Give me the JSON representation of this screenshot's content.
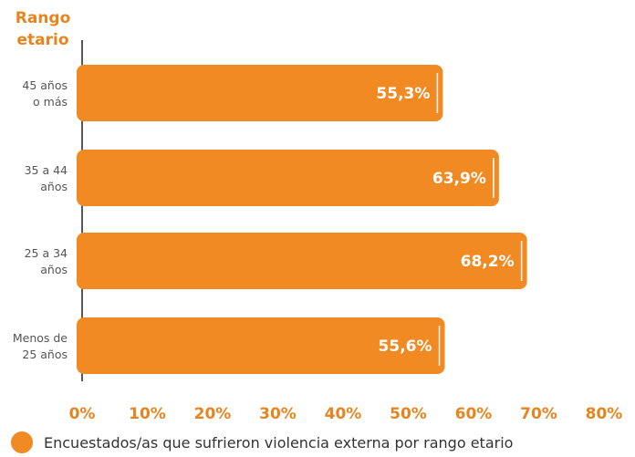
{
  "chart_data": {
    "type": "bar",
    "orientation": "horizontal",
    "ylabel": "Rango etario",
    "categories": [
      "45 años o más",
      "35 a 44 años",
      "25 a 34 años",
      "Menos de 25 años"
    ],
    "category_lines": [
      [
        "45 años",
        "o más"
      ],
      [
        "35 a 44",
        "años"
      ],
      [
        "25 a 34",
        "años"
      ],
      [
        "Menos de",
        "25 años"
      ]
    ],
    "values": [
      55.3,
      63.9,
      68.2,
      55.6
    ],
    "data_labels": [
      "55,3%",
      "63,9%",
      "68,2%",
      "55,6%"
    ],
    "xlim": [
      0,
      80
    ],
    "xticks": [
      0,
      10,
      20,
      30,
      40,
      50,
      60,
      70,
      80
    ],
    "xtick_labels": [
      "0%",
      "10%",
      "20%",
      "30%",
      "40%",
      "50%",
      "60%",
      "70%",
      "80%"
    ],
    "grid": false,
    "legend_position": "bottom-left",
    "series": [
      {
        "name": "Encuestados/as que sufrieron violencia externa por rango etario",
        "values": [
          55.3,
          63.9,
          68.2,
          55.6
        ]
      }
    ],
    "colors": {
      "bar": "#f28a24",
      "accent": "#e8841e",
      "axis": "#222222"
    }
  }
}
